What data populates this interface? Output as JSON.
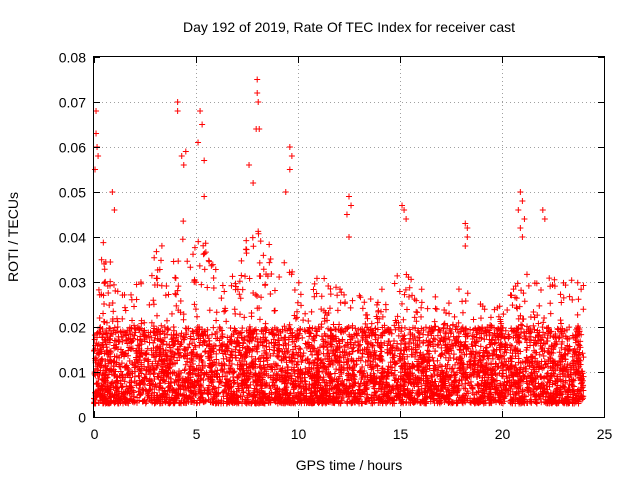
{
  "chart_data": {
    "type": "scatter",
    "title": "Day 192 of 2019, Rate Of TEC Index for receiver cast",
    "xlabel": "GPS time / hours",
    "ylabel": "ROTI / TECUs",
    "xlim": [
      0,
      25
    ],
    "ylim": [
      0,
      0.08
    ],
    "x_ticks": [
      0,
      5,
      10,
      15,
      20,
      25
    ],
    "x_tick_labels": [
      "0",
      "5",
      "10",
      "15",
      "20",
      "25"
    ],
    "y_ticks": [
      0,
      0.01,
      0.02,
      0.03,
      0.04,
      0.05,
      0.06,
      0.07,
      0.08
    ],
    "y_tick_labels": [
      "0",
      "0.01",
      "0.02",
      "0.03",
      "0.04",
      "0.05",
      "0.06",
      "0.07",
      "0.08"
    ],
    "grid": true,
    "marker": "plus",
    "series_color": "#ff0000",
    "x_range_of_data": [
      0,
      24
    ],
    "dense_band": [
      0.003,
      0.02
    ],
    "envelope": [
      {
        "x": 0.0,
        "upper": 0.03
      },
      {
        "x": 0.5,
        "upper": 0.04
      },
      {
        "x": 1.0,
        "upper": 0.032
      },
      {
        "x": 1.5,
        "upper": 0.028
      },
      {
        "x": 2.0,
        "upper": 0.03
      },
      {
        "x": 2.5,
        "upper": 0.03
      },
      {
        "x": 3.0,
        "upper": 0.038
      },
      {
        "x": 3.5,
        "upper": 0.04
      },
      {
        "x": 4.0,
        "upper": 0.045
      },
      {
        "x": 4.5,
        "upper": 0.045
      },
      {
        "x": 5.0,
        "upper": 0.042
      },
      {
        "x": 5.5,
        "upper": 0.04
      },
      {
        "x": 6.0,
        "upper": 0.033
      },
      {
        "x": 6.5,
        "upper": 0.032
      },
      {
        "x": 7.0,
        "upper": 0.034
      },
      {
        "x": 7.5,
        "upper": 0.04
      },
      {
        "x": 8.0,
        "upper": 0.042
      },
      {
        "x": 8.5,
        "upper": 0.04
      },
      {
        "x": 9.0,
        "upper": 0.036
      },
      {
        "x": 9.5,
        "upper": 0.034
      },
      {
        "x": 10.0,
        "upper": 0.03
      },
      {
        "x": 10.5,
        "upper": 0.03
      },
      {
        "x": 11.0,
        "upper": 0.032
      },
      {
        "x": 11.5,
        "upper": 0.032
      },
      {
        "x": 12.0,
        "upper": 0.032
      },
      {
        "x": 12.5,
        "upper": 0.033
      },
      {
        "x": 13.0,
        "upper": 0.03
      },
      {
        "x": 13.5,
        "upper": 0.028
      },
      {
        "x": 14.0,
        "upper": 0.028
      },
      {
        "x": 14.5,
        "upper": 0.03
      },
      {
        "x": 15.0,
        "upper": 0.032
      },
      {
        "x": 15.5,
        "upper": 0.033
      },
      {
        "x": 16.0,
        "upper": 0.03
      },
      {
        "x": 16.5,
        "upper": 0.028
      },
      {
        "x": 17.0,
        "upper": 0.026
      },
      {
        "x": 17.5,
        "upper": 0.026
      },
      {
        "x": 18.0,
        "upper": 0.03
      },
      {
        "x": 18.5,
        "upper": 0.028
      },
      {
        "x": 19.0,
        "upper": 0.025
      },
      {
        "x": 19.5,
        "upper": 0.025
      },
      {
        "x": 20.0,
        "upper": 0.026
      },
      {
        "x": 20.5,
        "upper": 0.028
      },
      {
        "x": 21.0,
        "upper": 0.035
      },
      {
        "x": 21.5,
        "upper": 0.03
      },
      {
        "x": 22.0,
        "upper": 0.032
      },
      {
        "x": 22.5,
        "upper": 0.032
      },
      {
        "x": 23.0,
        "upper": 0.03
      },
      {
        "x": 23.5,
        "upper": 0.032
      },
      {
        "x": 24.0,
        "upper": 0.03
      }
    ],
    "outliers": [
      {
        "x": 0.05,
        "y": 0.055
      },
      {
        "x": 0.1,
        "y": 0.063
      },
      {
        "x": 0.1,
        "y": 0.068
      },
      {
        "x": 0.15,
        "y": 0.06
      },
      {
        "x": 0.2,
        "y": 0.058
      },
      {
        "x": 0.9,
        "y": 0.05
      },
      {
        "x": 1.0,
        "y": 0.046
      },
      {
        "x": 4.1,
        "y": 0.07
      },
      {
        "x": 4.1,
        "y": 0.068
      },
      {
        "x": 4.3,
        "y": 0.058
      },
      {
        "x": 4.5,
        "y": 0.059
      },
      {
        "x": 4.4,
        "y": 0.056
      },
      {
        "x": 5.2,
        "y": 0.068
      },
      {
        "x": 5.3,
        "y": 0.065
      },
      {
        "x": 5.1,
        "y": 0.061
      },
      {
        "x": 5.4,
        "y": 0.057
      },
      {
        "x": 5.4,
        "y": 0.049
      },
      {
        "x": 7.6,
        "y": 0.056
      },
      {
        "x": 7.8,
        "y": 0.052
      },
      {
        "x": 8.0,
        "y": 0.075
      },
      {
        "x": 8.0,
        "y": 0.072
      },
      {
        "x": 8.05,
        "y": 0.07
      },
      {
        "x": 7.95,
        "y": 0.064
      },
      {
        "x": 8.1,
        "y": 0.064
      },
      {
        "x": 9.6,
        "y": 0.06
      },
      {
        "x": 9.7,
        "y": 0.058
      },
      {
        "x": 9.6,
        "y": 0.055
      },
      {
        "x": 9.4,
        "y": 0.05
      },
      {
        "x": 12.5,
        "y": 0.049
      },
      {
        "x": 12.6,
        "y": 0.047
      },
      {
        "x": 12.4,
        "y": 0.045
      },
      {
        "x": 12.5,
        "y": 0.04
      },
      {
        "x": 15.1,
        "y": 0.047
      },
      {
        "x": 15.2,
        "y": 0.046
      },
      {
        "x": 15.3,
        "y": 0.044
      },
      {
        "x": 18.2,
        "y": 0.043
      },
      {
        "x": 18.3,
        "y": 0.042
      },
      {
        "x": 18.3,
        "y": 0.04
      },
      {
        "x": 18.2,
        "y": 0.038
      },
      {
        "x": 20.9,
        "y": 0.05
      },
      {
        "x": 21.0,
        "y": 0.048
      },
      {
        "x": 20.8,
        "y": 0.046
      },
      {
        "x": 21.1,
        "y": 0.044
      },
      {
        "x": 20.9,
        "y": 0.042
      },
      {
        "x": 21.0,
        "y": 0.04
      },
      {
        "x": 22.0,
        "y": 0.046
      },
      {
        "x": 22.1,
        "y": 0.044
      }
    ]
  }
}
